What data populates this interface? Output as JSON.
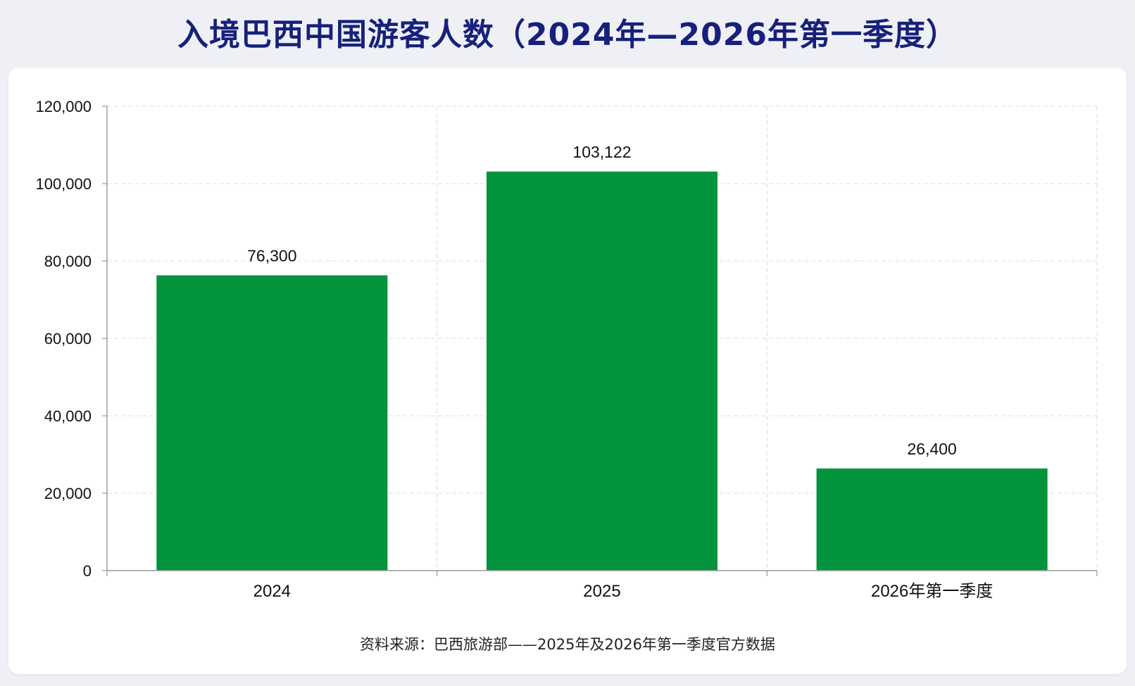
{
  "colors": {
    "bar": "#02933c",
    "title": "#17207a",
    "grid": "#dcdcdc",
    "axis": "#9a9a9a",
    "background": "#eef0f6",
    "card": "#ffffff"
  },
  "chart_data": {
    "type": "bar",
    "title": "入境巴西中国游客人数（2024年—2026年第一季度）",
    "categories": [
      "2024",
      "2025",
      "2026年第一季度"
    ],
    "values": [
      76300,
      103122,
      26400
    ],
    "value_labels": [
      "76,300",
      "103,122",
      "26,400"
    ],
    "ylim": [
      0,
      120000
    ],
    "yticks": [
      0,
      20000,
      40000,
      60000,
      80000,
      100000,
      120000
    ],
    "ytick_labels": [
      "0",
      "20,000",
      "40,000",
      "60,000",
      "80,000",
      "100,000",
      "120,000"
    ],
    "xlabel": "",
    "ylabel": "",
    "grid": true,
    "legend": "none"
  },
  "source_note": "资料来源：巴西旅游部——2025年及2026年第一季度官方数据"
}
